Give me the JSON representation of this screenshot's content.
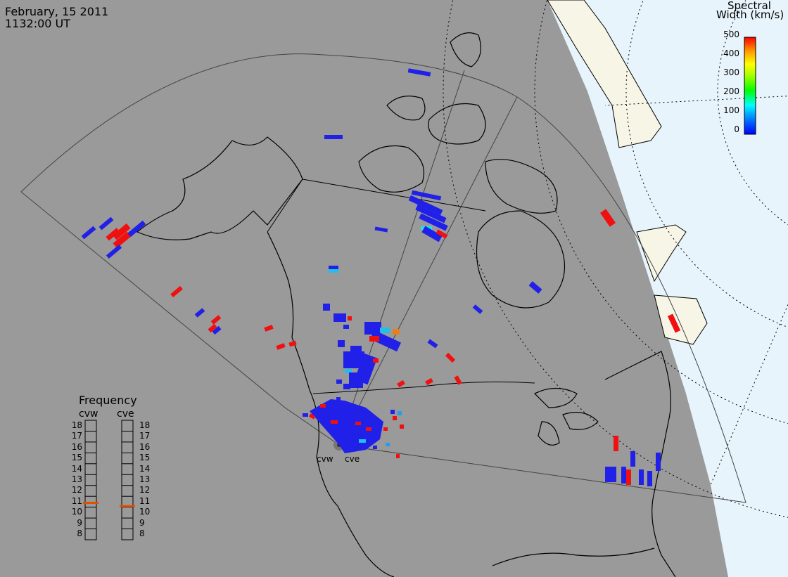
{
  "header": {
    "date": "February, 15 2011",
    "time": "1132:00 UT"
  },
  "colorbar": {
    "title_line1": "Spectral",
    "title_line2": "Width (km/s)",
    "ticks": [
      "500",
      "400",
      "300",
      "200",
      "100",
      "0"
    ],
    "scale_min": 0,
    "scale_max": 500,
    "colors": [
      "#0000ff",
      "#00a0ff",
      "#00ffff",
      "#00ff00",
      "#a0ff00",
      "#ffff00",
      "#ffa000",
      "#ff0000"
    ]
  },
  "frequency": {
    "title": "Frequency",
    "left_label": "cvw",
    "right_label": "cve",
    "scale": [
      "18",
      "17",
      "16",
      "15",
      "14",
      "13",
      "12",
      "11",
      "10",
      "9",
      "8"
    ],
    "cvw_value_mhz": 10.9,
    "cve_value_mhz": 10.6,
    "marker_color": "#e05000"
  },
  "radars": {
    "west": "cvw",
    "east": "cve"
  },
  "colors": {
    "land_shade": "#9a9a9a",
    "sunlit_land": "#f7f5e6",
    "sunlit_ocean": "#e8f4fb",
    "coast": "#000000"
  },
  "echoes": [
    {
      "region": "alaska",
      "width": "low",
      "count": 6
    },
    {
      "region": "alaska",
      "width": "high",
      "count": 4
    },
    {
      "region": "western-canada",
      "width": "low",
      "count": 30
    },
    {
      "region": "nunavut",
      "width": "low",
      "count": 14
    },
    {
      "region": "hudson-bay",
      "width": "low",
      "count": 3
    },
    {
      "region": "great-lakes",
      "width": "low",
      "count": 8
    },
    {
      "region": "great-lakes",
      "width": "high",
      "count": 3
    },
    {
      "region": "labrador",
      "width": "high",
      "count": 2
    },
    {
      "region": "near-radar",
      "width": "low",
      "count": 40
    }
  ]
}
